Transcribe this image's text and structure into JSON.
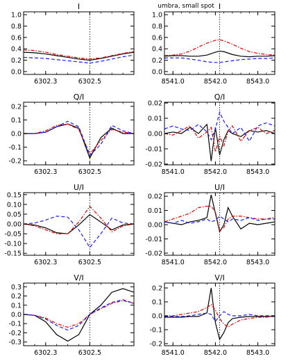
{
  "figure": {
    "suptitle": "umbra, small spot"
  },
  "series_style": [
    {
      "key": "black",
      "color": "#000000",
      "dash": ""
    },
    {
      "key": "red",
      "color": "#e00000",
      "dash": "5,2,1.5,2"
    },
    {
      "key": "blue",
      "color": "#1a1aff",
      "dash": "5,3"
    }
  ],
  "chart_data": [
    {
      "id": "I_6302",
      "type": "line",
      "title": "I",
      "xlim": [
        6302.2,
        6302.7
      ],
      "ylim": [
        -0.05,
        1.05
      ],
      "xticks": [
        6302.3,
        6302.5
      ],
      "xtick_labels": [
        "6302.3",
        "6302.5"
      ],
      "yticks": [
        0.0,
        0.2,
        0.4,
        0.6,
        0.8,
        1.0
      ],
      "ytick_labels": [
        "0.0",
        "0.2",
        "0.4",
        "0.6",
        "0.8",
        "1.0"
      ],
      "vline": 6302.5,
      "x": [
        6302.2,
        6302.25,
        6302.3,
        6302.35,
        6302.4,
        6302.45,
        6302.5,
        6302.55,
        6302.6,
        6302.65,
        6302.7
      ],
      "series": [
        {
          "style": "black",
          "values": [
            0.34,
            0.33,
            0.31,
            0.28,
            0.25,
            0.22,
            0.2,
            0.23,
            0.27,
            0.31,
            0.34
          ]
        },
        {
          "style": "red",
          "values": [
            0.38,
            0.37,
            0.34,
            0.3,
            0.27,
            0.24,
            0.22,
            0.24,
            0.28,
            0.32,
            0.35
          ]
        },
        {
          "style": "blue",
          "values": [
            0.25,
            0.24,
            0.23,
            0.21,
            0.19,
            0.17,
            0.15,
            0.18,
            0.22,
            0.26,
            0.29
          ]
        }
      ]
    },
    {
      "id": "I_8542",
      "type": "line",
      "title": "I",
      "xlim": [
        8540.8,
        8543.4
      ],
      "ylim": [
        -0.05,
        1.05
      ],
      "xticks": [
        8541.0,
        8542.0,
        8543.0
      ],
      "xtick_labels": [
        "8541.0",
        "8542.0",
        "8543.0"
      ],
      "yticks": [
        0.0,
        0.2,
        0.4,
        0.6,
        0.8,
        1.0
      ],
      "ytick_labels": [
        "0.0",
        "0.2",
        "0.4",
        "0.6",
        "0.8",
        "1.0"
      ],
      "vline": 8542.1,
      "x": [
        8540.8,
        8541.0,
        8541.2,
        8541.4,
        8541.6,
        8541.8,
        8542.0,
        8542.1,
        8542.2,
        8542.4,
        8542.6,
        8542.8,
        8543.0,
        8543.2,
        8543.4
      ],
      "series": [
        {
          "style": "black",
          "values": [
            0.27,
            0.28,
            0.28,
            0.27,
            0.27,
            0.29,
            0.34,
            0.36,
            0.35,
            0.3,
            0.27,
            0.26,
            0.27,
            0.27,
            0.28
          ]
        },
        {
          "style": "red",
          "values": [
            0.28,
            0.29,
            0.31,
            0.36,
            0.43,
            0.5,
            0.55,
            0.56,
            0.54,
            0.48,
            0.41,
            0.35,
            0.32,
            0.3,
            0.29
          ]
        },
        {
          "style": "blue",
          "values": [
            0.24,
            0.24,
            0.24,
            0.22,
            0.2,
            0.17,
            0.16,
            0.16,
            0.17,
            0.19,
            0.21,
            0.22,
            0.23,
            0.23,
            0.24
          ]
        }
      ]
    },
    {
      "id": "Q_6302",
      "type": "line",
      "title": "Q/I",
      "xlim": [
        6302.2,
        6302.7
      ],
      "ylim": [
        -0.23,
        0.23
      ],
      "xticks": [
        6302.3,
        6302.5
      ],
      "xtick_labels": [
        "6302.3",
        "6302.5"
      ],
      "yticks": [
        -0.2,
        -0.1,
        0.0,
        0.1,
        0.2
      ],
      "ytick_labels": [
        "-0.2",
        "-0.1",
        "0.0",
        "0.1",
        "0.2"
      ],
      "vline": 6302.5,
      "x": [
        6302.2,
        6302.25,
        6302.3,
        6302.35,
        6302.4,
        6302.45,
        6302.5,
        6302.55,
        6302.6,
        6302.65,
        6302.7
      ],
      "series": [
        {
          "style": "black",
          "values": [
            0.0,
            0.0,
            0.01,
            0.05,
            0.07,
            0.04,
            -0.18,
            -0.03,
            0.04,
            0.0,
            0.0
          ]
        },
        {
          "style": "red",
          "values": [
            0.0,
            0.0,
            0.02,
            0.06,
            0.07,
            0.03,
            -0.15,
            -0.05,
            0.03,
            0.01,
            0.0
          ]
        },
        {
          "style": "blue",
          "values": [
            0.0,
            0.0,
            0.01,
            0.05,
            0.09,
            0.05,
            -0.16,
            -0.08,
            0.06,
            0.02,
            0.0
          ]
        }
      ]
    },
    {
      "id": "Q_8542",
      "type": "line",
      "title": "Q/I",
      "xlim": [
        8540.8,
        8543.4
      ],
      "ylim": [
        -0.0205,
        0.0205
      ],
      "xticks": [
        8541.0,
        8542.0,
        8543.0
      ],
      "xtick_labels": [
        "8541.0",
        "8542.0",
        "8543.0"
      ],
      "yticks": [
        -0.02,
        -0.01,
        0.0,
        0.01,
        0.02
      ],
      "ytick_labels": [
        "-0.02",
        "-0.01",
        "0.00",
        "0.01",
        "0.02"
      ],
      "vline": 8542.1,
      "x": [
        8540.8,
        8541.0,
        8541.2,
        8541.4,
        8541.6,
        8541.8,
        8541.9,
        8542.0,
        8542.1,
        8542.2,
        8542.3,
        8542.4,
        8542.6,
        8542.8,
        8543.0,
        8543.2,
        8543.4
      ],
      "series": [
        {
          "style": "black",
          "values": [
            0.0,
            0.001,
            0.0,
            0.004,
            0.0,
            0.006,
            -0.018,
            0.004,
            -0.014,
            -0.004,
            0.002,
            0.0,
            -0.002,
            0.002,
            0.001,
            0.002,
            0.0
          ]
        },
        {
          "style": "red",
          "values": [
            0.0,
            -0.001,
            0.002,
            0.005,
            -0.003,
            0.001,
            0.004,
            -0.012,
            -0.002,
            -0.008,
            0.002,
            0.005,
            -0.005,
            0.002,
            0.004,
            0.0,
            0.002
          ]
        },
        {
          "style": "blue",
          "values": [
            0.003,
            0.005,
            0.003,
            0.002,
            0.006,
            0.001,
            -0.004,
            0.003,
            0.014,
            0.008,
            0.004,
            0.0,
            0.004,
            -0.005,
            0.005,
            0.007,
            0.005
          ]
        }
      ]
    },
    {
      "id": "U_6302",
      "type": "line",
      "title": "U/I",
      "xlim": [
        6302.2,
        6302.7
      ],
      "ylim": [
        -0.16,
        0.16
      ],
      "xticks": [
        6302.3,
        6302.5
      ],
      "xtick_labels": [
        "6302.3",
        "6302.5"
      ],
      "yticks": [
        -0.15,
        -0.1,
        -0.05,
        0.0,
        0.05,
        0.1,
        0.15
      ],
      "ytick_labels": [
        "-0.15",
        "-0.10",
        "-0.05",
        "0.00",
        "0.05",
        "0.10",
        "0.15"
      ],
      "vline": 6302.5,
      "x": [
        6302.2,
        6302.25,
        6302.3,
        6302.35,
        6302.4,
        6302.45,
        6302.5,
        6302.55,
        6302.6,
        6302.65,
        6302.7
      ],
      "series": [
        {
          "style": "black",
          "values": [
            0.0,
            -0.005,
            -0.02,
            -0.045,
            -0.05,
            -0.005,
            0.048,
            0.01,
            -0.03,
            -0.005,
            0.0
          ]
        },
        {
          "style": "red",
          "values": [
            0.0,
            -0.01,
            -0.03,
            -0.05,
            -0.05,
            0.01,
            0.09,
            0.03,
            -0.04,
            -0.01,
            0.0
          ]
        },
        {
          "style": "blue",
          "values": [
            0.0,
            0.005,
            0.02,
            0.04,
            0.035,
            -0.03,
            -0.12,
            -0.05,
            0.03,
            0.005,
            0.0
          ]
        }
      ]
    },
    {
      "id": "U_8542",
      "type": "line",
      "title": "U/I",
      "xlim": [
        8540.8,
        8543.4
      ],
      "ylim": [
        -0.0215,
        0.0225
      ],
      "xticks": [
        8541.0,
        8542.0,
        8543.0
      ],
      "xtick_labels": [
        "8541.0",
        "8542.0",
        "8543.0"
      ],
      "yticks": [
        -0.02,
        -0.01,
        0.0,
        0.01,
        0.02
      ],
      "ytick_labels": [
        "-0.02",
        "-0.01",
        "0.00",
        "0.01",
        "0.02"
      ],
      "vline": 8542.1,
      "x": [
        8540.8,
        8541.0,
        8541.2,
        8541.4,
        8541.6,
        8541.8,
        8541.9,
        8542.0,
        8542.1,
        8542.2,
        8542.3,
        8542.4,
        8542.6,
        8542.8,
        8543.0,
        8543.2,
        8543.4
      ],
      "series": [
        {
          "style": "black",
          "values": [
            0.002,
            0.001,
            0.0,
            0.002,
            0.003,
            0.005,
            0.021,
            0.008,
            -0.005,
            0.0,
            0.012,
            0.006,
            -0.003,
            0.001,
            0.0,
            0.001,
            0.002
          ]
        },
        {
          "style": "red",
          "values": [
            0.002,
            0.004,
            0.006,
            0.008,
            0.012,
            0.013,
            0.013,
            0.009,
            -0.004,
            -0.002,
            0.004,
            0.006,
            0.006,
            0.005,
            0.004,
            0.004,
            0.005
          ]
        },
        {
          "style": "blue",
          "values": [
            0.002,
            0.001,
            0.003,
            0.001,
            0.002,
            0.004,
            0.002,
            0.003,
            0.006,
            0.004,
            0.002,
            0.004,
            0.003,
            0.005,
            0.003,
            0.004,
            0.004
          ]
        }
      ]
    },
    {
      "id": "V_6302",
      "type": "line",
      "title": "V/I",
      "xlim": [
        6302.2,
        6302.7
      ],
      "ylim": [
        -0.34,
        0.34
      ],
      "xticks": [
        6302.3,
        6302.5
      ],
      "xtick_labels": [
        "6302.3",
        "6302.5"
      ],
      "yticks": [
        -0.3,
        -0.2,
        -0.1,
        0.0,
        0.1,
        0.2,
        0.3
      ],
      "ytick_labels": [
        "-0.3",
        "-0.2",
        "-0.1",
        "0.0",
        "0.1",
        "0.2",
        "0.3"
      ],
      "vline": 6302.5,
      "x": [
        6302.2,
        6302.25,
        6302.3,
        6302.35,
        6302.4,
        6302.45,
        6302.5,
        6302.55,
        6302.6,
        6302.65,
        6302.7
      ],
      "series": [
        {
          "style": "black",
          "values": [
            0.0,
            -0.01,
            -0.08,
            -0.22,
            -0.29,
            -0.22,
            0.0,
            0.1,
            0.24,
            0.28,
            0.24
          ]
        },
        {
          "style": "red",
          "values": [
            0.0,
            -0.01,
            -0.04,
            -0.1,
            -0.14,
            -0.1,
            0.0,
            0.06,
            0.12,
            0.15,
            0.12
          ]
        },
        {
          "style": "blue",
          "values": [
            0.0,
            -0.01,
            -0.05,
            -0.12,
            -0.17,
            -0.12,
            0.0,
            0.07,
            0.13,
            0.16,
            0.12
          ]
        }
      ]
    },
    {
      "id": "V_8542",
      "type": "line",
      "title": "V/I",
      "xlim": [
        8540.8,
        8543.4
      ],
      "ylim": [
        -0.215,
        0.235
      ],
      "xticks": [
        8541.0,
        8542.0,
        8543.0
      ],
      "xtick_labels": [
        "8541.0",
        "8542.0",
        "8543.0"
      ],
      "yticks": [
        -0.2,
        -0.1,
        0.0,
        0.1,
        0.2
      ],
      "ytick_labels": [
        "-0.2",
        "-0.1",
        "0.0",
        "0.1",
        "0.2"
      ],
      "vline": 8542.1,
      "x": [
        8540.8,
        8541.0,
        8541.2,
        8541.4,
        8541.6,
        8541.8,
        8541.9,
        8542.0,
        8542.1,
        8542.2,
        8542.3,
        8542.4,
        8542.6,
        8542.8,
        8543.0,
        8543.2,
        8543.4
      ],
      "series": [
        {
          "style": "black",
          "values": [
            -0.01,
            -0.01,
            -0.01,
            -0.005,
            -0.005,
            0.02,
            0.2,
            -0.05,
            -0.17,
            -0.12,
            -0.05,
            -0.02,
            -0.01,
            -0.005,
            -0.005,
            -0.005,
            -0.005
          ]
        },
        {
          "style": "red",
          "values": [
            0.0,
            0.0,
            0.01,
            0.02,
            0.03,
            0.06,
            0.08,
            0.04,
            -0.02,
            -0.06,
            -0.08,
            -0.06,
            -0.03,
            -0.02,
            -0.01,
            -0.01,
            0.0
          ]
        },
        {
          "style": "blue",
          "values": [
            -0.005,
            -0.005,
            -0.005,
            0.0,
            0.01,
            0.02,
            0.01,
            -0.04,
            0.0,
            0.03,
            0.01,
            0.0,
            0.0,
            0.01,
            0.0,
            0.0,
            0.0
          ]
        }
      ]
    }
  ]
}
